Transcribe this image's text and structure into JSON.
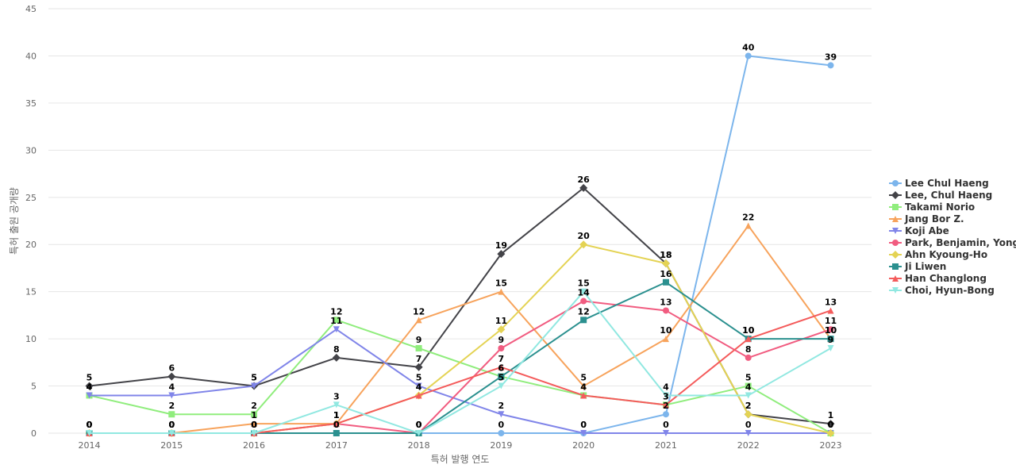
{
  "chart_data": {
    "type": "line",
    "title": "",
    "xlabel": "특허 발행 연도",
    "ylabel": "특허 출원 공개량",
    "ylim": [
      0,
      45
    ],
    "yticks": [
      0,
      5,
      10,
      15,
      20,
      25,
      30,
      35,
      40,
      45
    ],
    "categories": [
      "2014",
      "2015",
      "2016",
      "2017",
      "2018",
      "2019",
      "2020",
      "2021",
      "2022",
      "2023"
    ],
    "grid": true,
    "legend_position": "right",
    "series": [
      {
        "name": "Lee Chul Haeng",
        "color": "#7cb5ec",
        "marker": "circle",
        "values": [
          0,
          0,
          0,
          0,
          0,
          0,
          0,
          2,
          40,
          39
        ]
      },
      {
        "name": "Lee, Chul Haeng",
        "color": "#434348",
        "marker": "diamond",
        "values": [
          5,
          6,
          5,
          8,
          7,
          19,
          26,
          18,
          2,
          1
        ]
      },
      {
        "name": "Takami Norio",
        "color": "#90ed7d",
        "marker": "square",
        "values": [
          4,
          2,
          2,
          12,
          9,
          6,
          4,
          3,
          5,
          0
        ]
      },
      {
        "name": "Jang Bor Z.",
        "color": "#f7a35c",
        "marker": "triangle",
        "values": [
          0,
          0,
          1,
          1,
          12,
          15,
          5,
          10,
          22,
          10
        ]
      },
      {
        "name": "Koji Abe",
        "color": "#8085e9",
        "marker": "triangle-down",
        "values": [
          4,
          4,
          5,
          11,
          5,
          2,
          0,
          0,
          0,
          0
        ]
      },
      {
        "name": "Park, Benjamin, Yong",
        "color": "#f15c80",
        "marker": "circle",
        "values": [
          0,
          0,
          0,
          1,
          0,
          9,
          14,
          13,
          8,
          11
        ]
      },
      {
        "name": "Ahn Kyoung-Ho",
        "color": "#e4d354",
        "marker": "diamond",
        "values": [
          0,
          0,
          0,
          1,
          4,
          11,
          20,
          18,
          2,
          0
        ]
      },
      {
        "name": "Ji Liwen",
        "color": "#2b908f",
        "marker": "square",
        "values": [
          0,
          0,
          0,
          0,
          0,
          6,
          12,
          16,
          10,
          10
        ]
      },
      {
        "name": "Han Changlong",
        "color": "#f45b5b",
        "marker": "triangle",
        "values": [
          0,
          0,
          0,
          1,
          4,
          7,
          4,
          3,
          10,
          13
        ]
      },
      {
        "name": "Choi, Hyun-Bong",
        "color": "#91e8e1",
        "marker": "triangle-down",
        "values": [
          0,
          0,
          0,
          3,
          0,
          5,
          15,
          4,
          4,
          9
        ]
      }
    ]
  }
}
